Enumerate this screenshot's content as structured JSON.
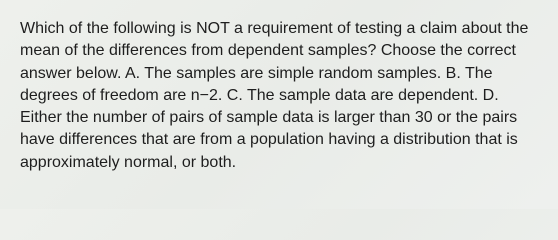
{
  "question": "Which of the following is NOT a requirement of testing a claim about the mean of the differences from dependent samples? Choose the correct answer below. A. The samples are simple random samples. B. The degrees of freedom are n−2. C. The sample data are dependent. D. Either the number of pairs of sample data is larger than 30 or the pairs have differences that are from a population having a distribution that is approximately normal, or both."
}
